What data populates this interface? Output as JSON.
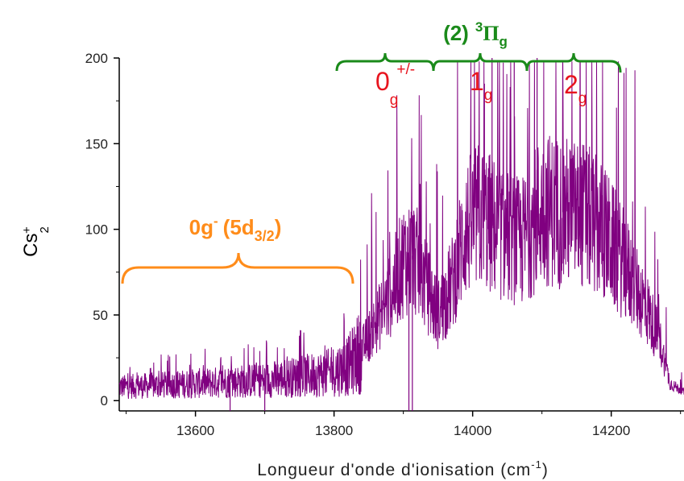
{
  "chart_data": {
    "type": "line",
    "xlabel_text": "Longueur d'onde d'ionisation (cm",
    "xlabel_exp": "-1",
    "xlabel_close": ")",
    "ylabel_main": "Cs",
    "ylabel_sup": "+",
    "ylabel_sub": "2",
    "xlim": [
      13490,
      14305
    ],
    "ylim": [
      -6,
      200
    ],
    "x_ticks": [
      13600,
      13800,
      14000,
      14200
    ],
    "x_tick_labels": [
      "13600",
      "13800",
      "14000",
      "14200"
    ],
    "y_ticks": [
      0,
      50,
      100,
      150,
      200
    ],
    "y_tick_labels": [
      "0",
      "50",
      "100",
      "150",
      "200"
    ],
    "series": [
      {
        "color": "#800080",
        "envelope": {
          "x": [
            13490,
            13550,
            13600,
            13650,
            13700,
            13750,
            13790,
            13820,
            13840,
            13860,
            13880,
            13900,
            13915,
            13930,
            13950,
            13970,
            13990,
            14010,
            14040,
            14070,
            14100,
            14130,
            14160,
            14190,
            14220,
            14250,
            14270,
            14285,
            14305
          ],
          "y": [
            8,
            9,
            10,
            11,
            12,
            14,
            16,
            20,
            30,
            45,
            60,
            82,
            85,
            70,
            50,
            68,
            100,
            108,
            98,
            92,
            112,
            110,
            108,
            98,
            78,
            55,
            35,
            10,
            5
          ]
        },
        "spikes": [
          {
            "x": 13650,
            "y": -6
          },
          {
            "x": 13700,
            "y": -6
          },
          {
            "x": 13908,
            "y": -6
          },
          {
            "x": 13913,
            "y": -6
          },
          {
            "x": 14017,
            "y": 185
          },
          {
            "x": 14028,
            "y": 200
          },
          {
            "x": 14060,
            "y": 198
          },
          {
            "x": 14093,
            "y": 200
          },
          {
            "x": 14130,
            "y": 198
          }
        ]
      }
    ],
    "annotations": {
      "orange_label": "0g",
      "orange_sup": "-",
      "orange_paren_open": "(5d",
      "orange_paren_sub": "3/2",
      "orange_paren_close": ")",
      "orange_color": "#FF8C1A",
      "green_label": "(2)",
      "green_sup": "3",
      "green_pi": "Π",
      "green_sub": "g",
      "green_color": "#1A8A1A",
      "red_color": "#E8141E",
      "states": [
        {
          "main": "0",
          "sub": "g",
          "sup": "+/-"
        },
        {
          "main": "1",
          "sub": "g",
          "sup": ""
        },
        {
          "main": "2",
          "sub": "g",
          "sup": ""
        }
      ]
    }
  }
}
